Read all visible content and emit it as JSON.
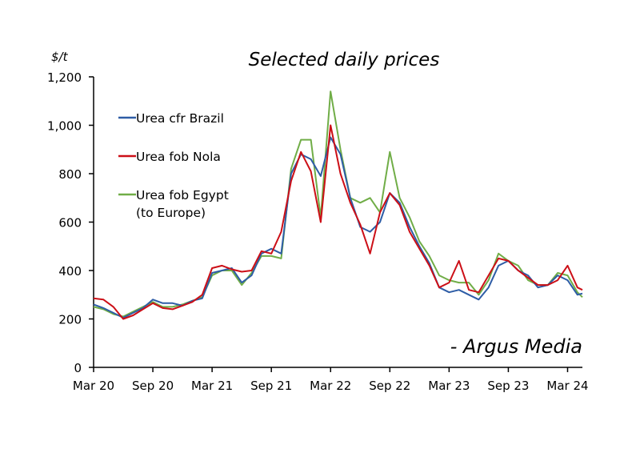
{
  "chart_data": {
    "type": "line",
    "title": "Selected daily prices",
    "ylabel": "$/t",
    "xlabel": "",
    "ylim": [
      0,
      1200
    ],
    "yticks": [
      0,
      200,
      400,
      600,
      800,
      1000,
      1200
    ],
    "ytick_labels": [
      "0",
      "200",
      "400",
      "600",
      "800",
      "1,000",
      "1,200"
    ],
    "xlim": [
      0,
      49.5
    ],
    "xticks": [
      0,
      6,
      12,
      18,
      24,
      30,
      36,
      42,
      48
    ],
    "xtick_labels": [
      "Mar 20",
      "Sep 20",
      "Mar 21",
      "Sep 21",
      "Mar 22",
      "Sep 22",
      "Mar 23",
      "Sep 23",
      "Mar 24"
    ],
    "x_unit": "months since Mar 2020",
    "grid": false,
    "legend_position": "top-left",
    "annotation": "- Argus Media",
    "x": [
      0,
      1,
      2,
      3,
      4,
      5,
      6,
      7,
      8,
      9,
      10,
      11,
      12,
      13,
      14,
      15,
      16,
      17,
      18,
      19,
      20,
      21,
      22,
      23,
      24,
      25,
      26,
      27,
      28,
      29,
      30,
      31,
      32,
      33,
      34,
      35,
      36,
      37,
      38,
      39,
      40,
      41,
      42,
      43,
      44,
      45,
      46,
      47,
      48,
      49,
      49.5
    ],
    "series": [
      {
        "name": "Urea cfr Brazil",
        "color": "#2e5da6",
        "values": [
          260,
          245,
          225,
          205,
          225,
          245,
          280,
          265,
          265,
          255,
          275,
          285,
          390,
          400,
          410,
          350,
          380,
          470,
          490,
          470,
          800,
          880,
          860,
          790,
          950,
          880,
          700,
          580,
          560,
          600,
          720,
          680,
          580,
          500,
          430,
          330,
          310,
          320,
          300,
          280,
          330,
          420,
          440,
          400,
          380,
          330,
          340,
          380,
          360,
          300,
          305
        ]
      },
      {
        "name": "Urea fob Nola",
        "color": "#cc0f17",
        "values": [
          285,
          280,
          250,
          200,
          215,
          240,
          265,
          245,
          240,
          255,
          270,
          300,
          410,
          420,
          405,
          395,
          400,
          480,
          470,
          560,
          770,
          890,
          810,
          600,
          1000,
          800,
          680,
          590,
          470,
          640,
          720,
          670,
          560,
          490,
          420,
          330,
          350,
          440,
          320,
          310,
          380,
          450,
          440,
          400,
          370,
          340,
          340,
          360,
          420,
          330,
          320
        ]
      },
      {
        "name": "Urea fob Egypt (to Europe)",
        "label_line1": "Urea fob Egypt",
        "label_line2": "(to Europe)",
        "color": "#70ad47",
        "values": [
          250,
          240,
          220,
          210,
          230,
          250,
          270,
          250,
          250,
          260,
          275,
          290,
          380,
          400,
          400,
          340,
          390,
          460,
          460,
          450,
          820,
          940,
          940,
          620,
          1140,
          900,
          700,
          680,
          700,
          640,
          890,
          700,
          620,
          520,
          460,
          380,
          360,
          350,
          350,
          300,
          360,
          470,
          440,
          420,
          360,
          340,
          340,
          390,
          380,
          310,
          290
        ]
      }
    ]
  }
}
